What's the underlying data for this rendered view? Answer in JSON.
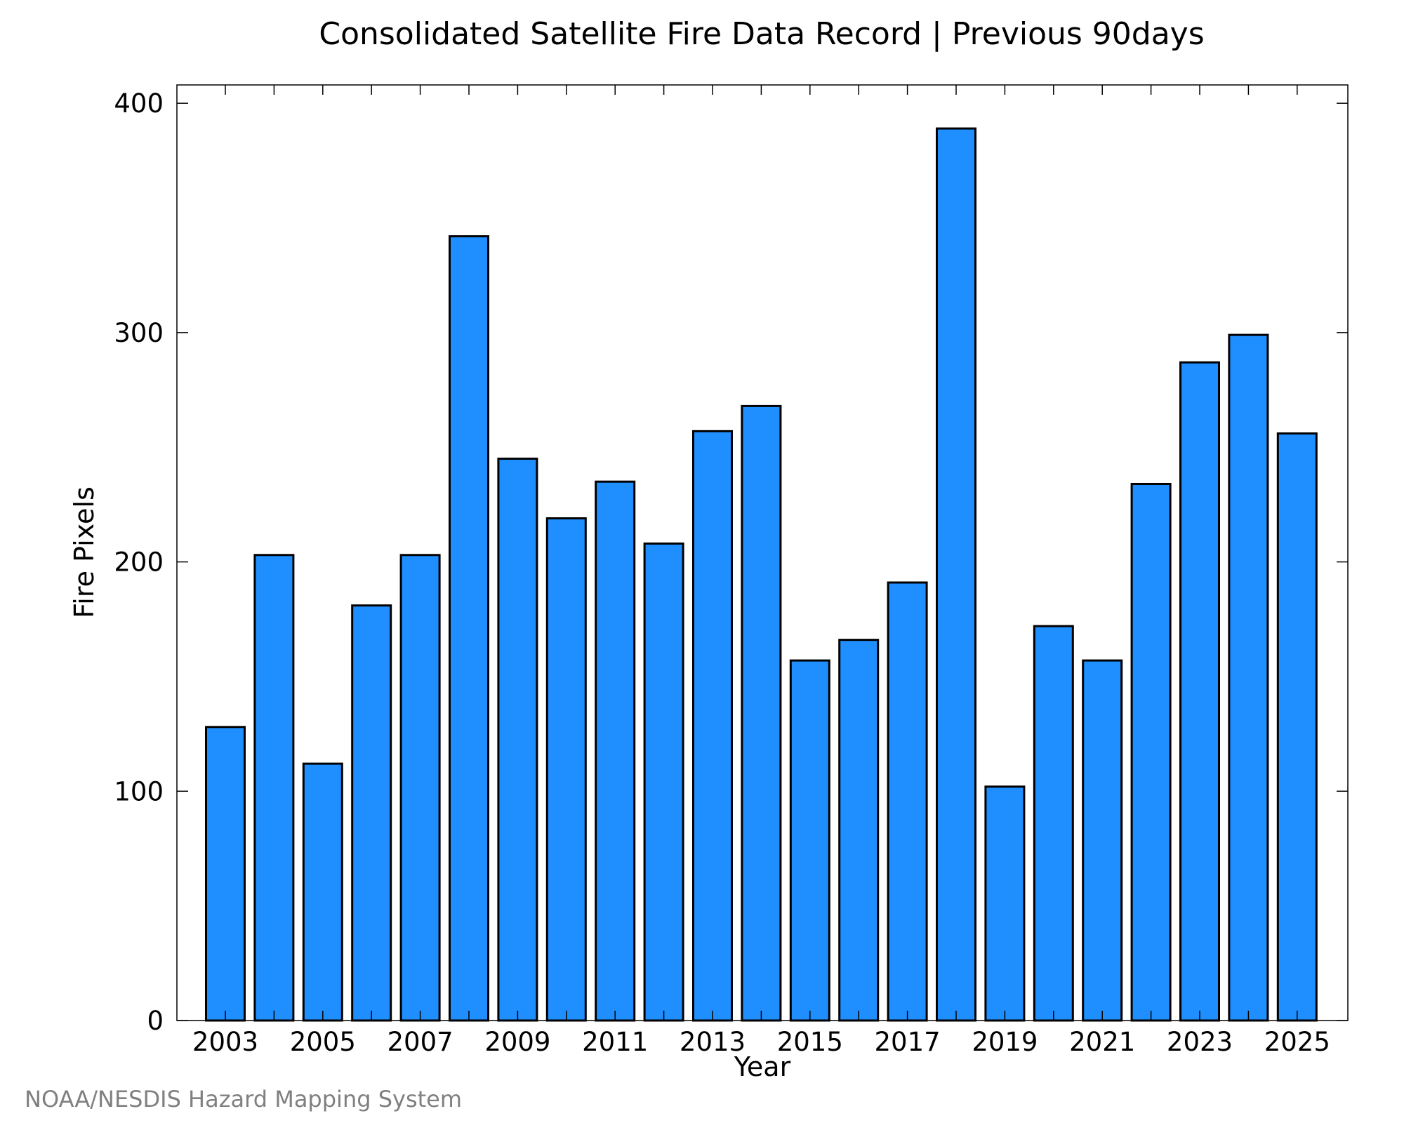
{
  "chart_data": {
    "type": "bar",
    "title": "Consolidated Satellite Fire Data Record | Previous 90days",
    "xlabel": "Year",
    "ylabel": "Fire Pixels",
    "credit": "NOAA/NESDIS Hazard Mapping System",
    "categories": [
      "2003",
      "2004",
      "2005",
      "2006",
      "2007",
      "2008",
      "2009",
      "2010",
      "2011",
      "2012",
      "2013",
      "2014",
      "2015",
      "2016",
      "2017",
      "2018",
      "2019",
      "2020",
      "2021",
      "2022",
      "2023",
      "2024",
      "2025"
    ],
    "values": [
      128,
      203,
      112,
      181,
      203,
      342,
      245,
      219,
      235,
      208,
      257,
      268,
      157,
      166,
      191,
      389,
      102,
      172,
      157,
      234,
      287,
      299,
      256
    ],
    "x_tick_labels": [
      "2003",
      "2005",
      "2007",
      "2009",
      "2011",
      "2013",
      "2015",
      "2017",
      "2019",
      "2021",
      "2023",
      "2025"
    ],
    "y_ticks": [
      0,
      100,
      200,
      300,
      400
    ],
    "ylim": [
      0,
      408
    ],
    "grid": false,
    "legend": "none",
    "bar_color": "#1f8fff"
  }
}
